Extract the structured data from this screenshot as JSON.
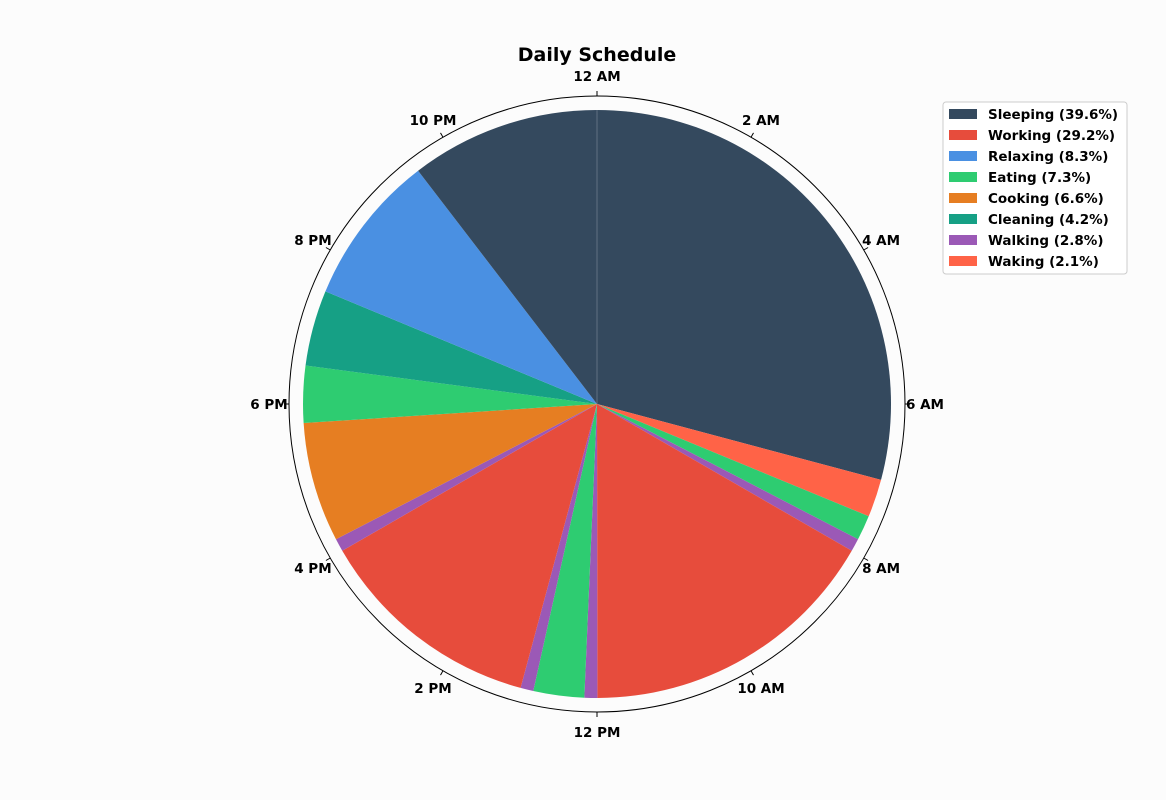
{
  "chart_data": {
    "type": "pie",
    "title": "Daily Schedule",
    "clock_labels": [
      "12 AM",
      "2 AM",
      "4 AM",
      "6 AM",
      "8 AM",
      "10 AM",
      "12 PM",
      "2 PM",
      "4 PM",
      "6 PM",
      "8 PM",
      "10 PM"
    ],
    "start_angle_deg": 90,
    "direction": "clockwise",
    "legend": {
      "position": "top-right",
      "entries": [
        {
          "activity": "Sleeping",
          "label": "Sleeping (39.6%)",
          "color": "#34495e"
        },
        {
          "activity": "Working",
          "label": "Working (29.2%)",
          "color": "#e74c3c"
        },
        {
          "activity": "Relaxing",
          "label": "Relaxing (8.3%)",
          "color": "#4a90e2"
        },
        {
          "activity": "Eating",
          "label": "Eating (7.3%)",
          "color": "#2ecc71"
        },
        {
          "activity": "Cooking",
          "label": "Cooking (6.6%)",
          "color": "#e67e22"
        },
        {
          "activity": "Cleaning",
          "label": "Cleaning (4.2%)",
          "color": "#16a085"
        },
        {
          "activity": "Walking",
          "label": "Walking (2.8%)",
          "color": "#9b59b6"
        },
        {
          "activity": "Waking",
          "label": "Waking (2.1%)",
          "color": "#ff6347"
        }
      ]
    },
    "slices": [
      {
        "activity": "Sleeping",
        "hours": 7.0,
        "color": "#34495e"
      },
      {
        "activity": "Waking",
        "hours": 0.5,
        "color": "#ff6347"
      },
      {
        "activity": "Eating",
        "hours": 0.33,
        "color": "#2ecc71"
      },
      {
        "activity": "Walking",
        "hours": 0.17,
        "color": "#9b59b6"
      },
      {
        "activity": "Working",
        "hours": 4.0,
        "color": "#e74c3c"
      },
      {
        "activity": "Walking",
        "hours": 0.17,
        "color": "#9b59b6"
      },
      {
        "activity": "Eating",
        "hours": 0.67,
        "color": "#2ecc71"
      },
      {
        "activity": "Walking",
        "hours": 0.17,
        "color": "#9b59b6"
      },
      {
        "activity": "Working",
        "hours": 3.0,
        "color": "#e74c3c"
      },
      {
        "activity": "Walking",
        "hours": 0.17,
        "color": "#9b59b6"
      },
      {
        "activity": "Cooking",
        "hours": 1.58,
        "color": "#e67e22"
      },
      {
        "activity": "Eating",
        "hours": 0.75,
        "color": "#2ecc71"
      },
      {
        "activity": "Cleaning",
        "hours": 1.0,
        "color": "#16a085"
      },
      {
        "activity": "Relaxing",
        "hours": 2.0,
        "color": "#4a90e2"
      },
      {
        "activity": "Sleeping",
        "hours": 2.5,
        "color": "#34495e"
      }
    ]
  }
}
